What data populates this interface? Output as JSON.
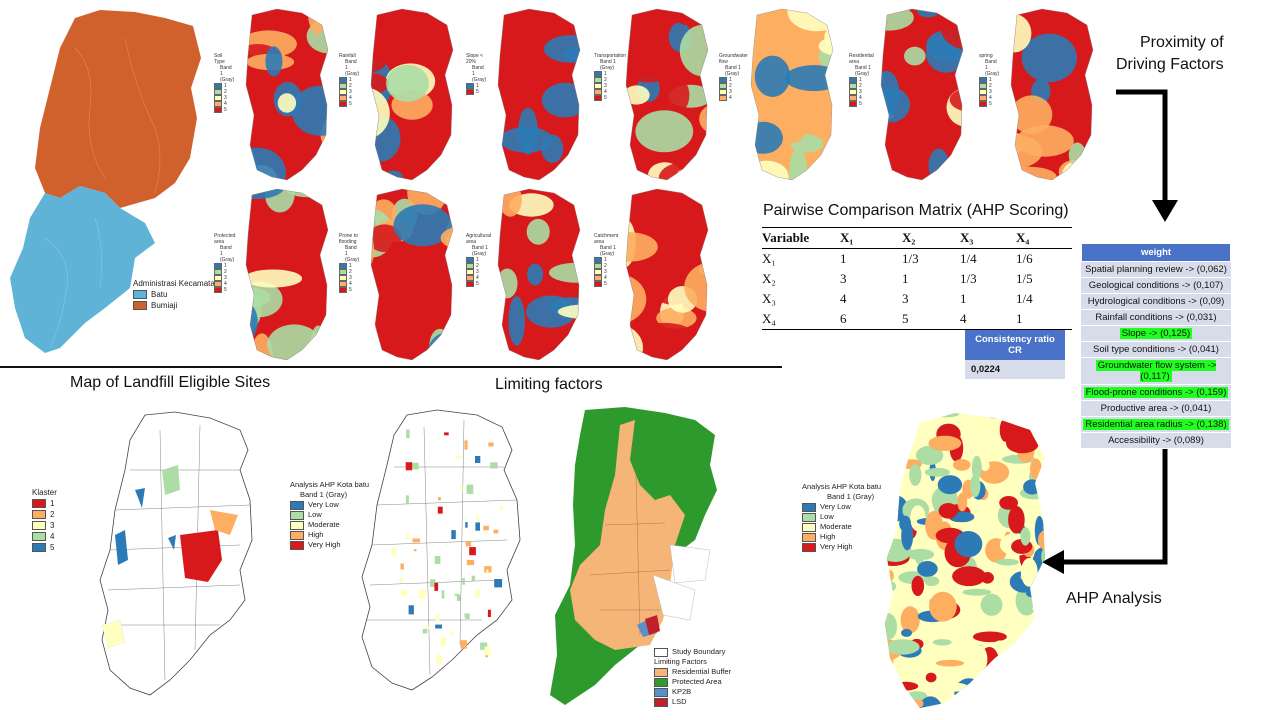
{
  "headings": {
    "proximity": [
      "Proximity of",
      "Driving Factors"
    ],
    "pcm_title": "Pairwise Comparison Matrix (AHP Scoring)",
    "eligible": "Map of Landfill Eligible Sites",
    "limiting": "Limiting factors",
    "ahp": "AHP Analysis"
  },
  "admin_legend": {
    "title": "Administrasi Kecamatan",
    "items": [
      {
        "label": "Batu",
        "color": "#5fb3d6"
      },
      {
        "label": "Bumiaji",
        "color": "#d0602c"
      }
    ]
  },
  "factor_maps": [
    {
      "title": "Soil Type",
      "sub": "Band 1 (Gray)",
      "items": [
        "1",
        "2",
        "3",
        "4",
        "5"
      ]
    },
    {
      "title": "Rainfall",
      "sub": "Band 1 (Gray)",
      "items": [
        "1",
        "2",
        "3",
        "4",
        "5"
      ]
    },
    {
      "title": "Slope < 20%",
      "sub": "Band 1 (Gray)",
      "items": [
        "1",
        "5"
      ]
    },
    {
      "title": "Transportation",
      "sub": "Band 1 (Gray)",
      "items": [
        "1",
        "2",
        "3",
        "4",
        "5"
      ]
    },
    {
      "title": "Groundwater flow",
      "sub": "Band 1 (Gray)",
      "items": [
        "1",
        "2",
        "3",
        "4"
      ]
    },
    {
      "title": "Residential area",
      "sub": "Band 1 (Gray)",
      "items": [
        "1",
        "2",
        "3",
        "4",
        "5"
      ]
    },
    {
      "title": "spring",
      "sub": "Band 1 (Gray)",
      "items": [
        "1",
        "2",
        "3",
        "4",
        "5"
      ]
    },
    {
      "title": "Protected area",
      "sub": "Band 1 (Gray)",
      "items": [
        "1",
        "2",
        "3",
        "4",
        "5"
      ]
    },
    {
      "title": "Prone to flooding",
      "sub": "Band 1 (Gray)",
      "items": [
        "1",
        "2",
        "3",
        "4",
        "5"
      ]
    },
    {
      "title": "Agricultural area",
      "sub": "Band 1 (Gray)",
      "items": [
        "1",
        "2",
        "3",
        "4",
        "5"
      ]
    },
    {
      "title": "Catchment area",
      "sub": "Band 1 (Gray)",
      "items": [
        "1",
        "2",
        "3",
        "4",
        "5"
      ]
    }
  ],
  "class_colors": [
    "#2c7bb6",
    "#abdda4",
    "#ffffbf",
    "#fdae61",
    "#d7191c"
  ],
  "pcm": {
    "headers": [
      "Variable",
      "X₁",
      "X₂",
      "X₃",
      "X₄"
    ],
    "rows": [
      [
        "X₁",
        "1",
        "1/3",
        "1/4",
        "1/6"
      ],
      [
        "X₂",
        "3",
        "1",
        "1/3",
        "1/5"
      ],
      [
        "X₃",
        "4",
        "3",
        "1",
        "1/4"
      ],
      [
        "X₄",
        "6",
        "5",
        "4",
        "1"
      ]
    ]
  },
  "consistency": {
    "label": "Consistency ratio CR",
    "value": "0,0224"
  },
  "weights": {
    "header": "weight",
    "items": [
      {
        "label": "Spatial planning review -> (0,062)",
        "highlight": false
      },
      {
        "label": "Geological conditions -> (0,107)",
        "highlight": false
      },
      {
        "label": "Hydrological conditions -> (0,09)",
        "highlight": false
      },
      {
        "label": "Rainfall conditions -> (0,031)",
        "highlight": false
      },
      {
        "label": "Slope -> (0,125)",
        "highlight": true
      },
      {
        "label": "Soil type conditions -> (0,041)",
        "highlight": false
      },
      {
        "label": "Groundwater flow system -> (0,117)",
        "highlight": true
      },
      {
        "label": "Flood-prone conditions -> (0,159)",
        "highlight": true
      },
      {
        "label": "Productive area -> (0,041)",
        "highlight": false
      },
      {
        "label": "Residential area radius -> (0,138)",
        "highlight": true
      },
      {
        "label": "Accessibility -> (0,089)",
        "highlight": false
      }
    ]
  },
  "klaster_legend": {
    "title": "Klaster",
    "items": [
      {
        "label": "1",
        "color": "#d7191c"
      },
      {
        "label": "2",
        "color": "#fdae61"
      },
      {
        "label": "3",
        "color": "#ffffbf"
      },
      {
        "label": "4",
        "color": "#abdda4"
      },
      {
        "label": "5",
        "color": "#2c7bb6"
      }
    ]
  },
  "ahp_legend": {
    "title": "Analysis AHP Kota batu",
    "sub": "Band 1 (Gray)",
    "items": [
      {
        "label": "Very Low",
        "color": "#2c7bb6"
      },
      {
        "label": "Low",
        "color": "#abdda4"
      },
      {
        "label": "Moderate",
        "color": "#ffffbf"
      },
      {
        "label": "High",
        "color": "#fdae61"
      },
      {
        "label": "Very High",
        "color": "#d7191c"
      }
    ]
  },
  "limiting_legend": {
    "boundary": "Study Boundary",
    "title": "Limiting Factors",
    "items": [
      {
        "label": "Residential Buffer",
        "color": "#f5b577"
      },
      {
        "label": "Protected Area",
        "color": "#2e9a2e"
      },
      {
        "label": "KP2B",
        "color": "#5a8fc8"
      },
      {
        "label": "LSD",
        "color": "#c0202c"
      }
    ]
  }
}
